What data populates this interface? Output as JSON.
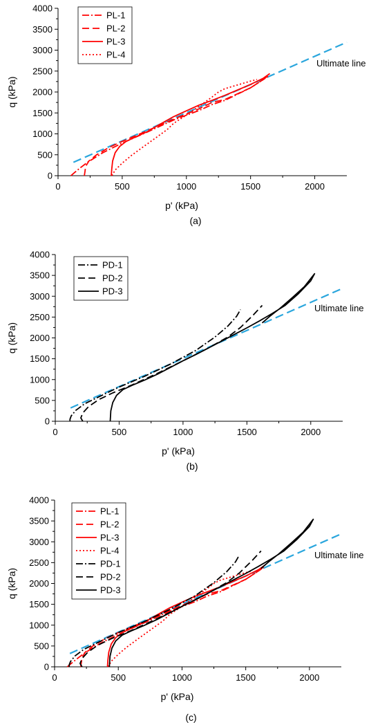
{
  "colors": {
    "red": "#ff0000",
    "black": "#000000",
    "ultimate": "#2aa6dd",
    "axis": "#000000"
  },
  "chart_data": [
    {
      "type": "line",
      "panel_label": "(a)",
      "xlabel": "p' (kPa)",
      "ylabel": "q (kPa)",
      "xlim": [
        0,
        2250
      ],
      "ylim": [
        0,
        4000
      ],
      "xticks": [
        0,
        500,
        1000,
        1500,
        2000
      ],
      "yticks": [
        0,
        500,
        1000,
        1500,
        2000,
        2500,
        3000,
        3500,
        4000
      ],
      "annotation": "Ultimate line",
      "legend_position": "top-left",
      "ultimate_line": {
        "x": [
          120,
          2250
        ],
        "y": [
          320,
          3190
        ]
      },
      "series": [
        {
          "name": "PL-1",
          "color": "red",
          "dash": "10,3,2,3",
          "x": [
            100,
            130,
            170,
            230,
            350,
            500,
            700,
            900,
            1100,
            1200,
            1300,
            1400,
            1500,
            1600,
            1640
          ],
          "y": [
            0,
            80,
            180,
            320,
            550,
            780,
            1050,
            1330,
            1560,
            1700,
            1800,
            1950,
            2100,
            2300,
            2380
          ]
        },
        {
          "name": "PL-2",
          "color": "red",
          "dash": "10,5",
          "x": [
            205,
            210,
            215,
            240,
            300,
            400,
            500,
            700,
            900,
            1100,
            1200,
            1300,
            1400,
            1500,
            1600,
            1650
          ],
          "y": [
            0,
            100,
            220,
            350,
            500,
            680,
            820,
            1080,
            1350,
            1600,
            1750,
            1820,
            1960,
            2100,
            2300,
            2420
          ]
        },
        {
          "name": "PL-3",
          "color": "red",
          "dash": "",
          "x": [
            415,
            418,
            425,
            445,
            480,
            530,
            600,
            700,
            800,
            900,
            1000,
            1100,
            1200,
            1300,
            1400,
            1500,
            1600,
            1650
          ],
          "y": [
            0,
            150,
            350,
            550,
            700,
            820,
            920,
            1060,
            1240,
            1410,
            1550,
            1690,
            1800,
            1920,
            2050,
            2180,
            2330,
            2440
          ]
        },
        {
          "name": "PL-4",
          "color": "red",
          "dash": "2,3",
          "x": [
            420,
            430,
            450,
            500,
            570,
            650,
            750,
            850,
            900,
            1000,
            1100,
            1200,
            1250,
            1300,
            1400,
            1500,
            1550
          ],
          "y": [
            0,
            60,
            150,
            300,
            480,
            660,
            880,
            1100,
            1250,
            1450,
            1660,
            1880,
            2000,
            2080,
            2170,
            2260,
            2300
          ]
        }
      ]
    },
    {
      "type": "line",
      "panel_label": "(b)",
      "xlabel": "p' (kPa)",
      "ylabel": "q (kPa)",
      "xlim": [
        0,
        2250
      ],
      "ylim": [
        0,
        4000
      ],
      "xticks": [
        0,
        500,
        1000,
        1500,
        2000
      ],
      "yticks": [
        0,
        500,
        1000,
        1500,
        2000,
        2500,
        3000,
        3500,
        4000
      ],
      "annotation": "Ultimate line",
      "legend_position": "top-left",
      "ultimate_line": {
        "x": [
          120,
          2250
        ],
        "y": [
          320,
          3190
        ]
      },
      "series": [
        {
          "name": "PD-1",
          "color": "black",
          "dash": "10,3,2,3",
          "x": [
            115,
            115,
            125,
            160,
            230,
            350,
            500,
            700,
            900,
            1100,
            1250,
            1350,
            1420,
            1450
          ],
          "y": [
            0,
            50,
            130,
            260,
            420,
            600,
            820,
            1080,
            1370,
            1700,
            2020,
            2280,
            2520,
            2680
          ]
        },
        {
          "name": "PD-2",
          "color": "black",
          "dash": "10,5",
          "x": [
            215,
            200,
            215,
            260,
            340,
            450,
            600,
            800,
            1000,
            1200,
            1350,
            1450,
            1550,
            1620
          ],
          "y": [
            0,
            80,
            200,
            350,
            520,
            680,
            870,
            1150,
            1450,
            1760,
            2020,
            2250,
            2550,
            2780
          ]
        },
        {
          "name": "PD-3",
          "color": "black",
          "dash": "",
          "x": [
            430,
            435,
            450,
            480,
            530,
            600,
            700,
            800,
            900,
            1000,
            1100,
            1200,
            1300,
            1400,
            1500,
            1600,
            1700,
            1800,
            1900,
            2000,
            2030,
            1950,
            1860,
            1760,
            1680,
            1620
          ],
          "y": [
            0,
            250,
            450,
            620,
            760,
            860,
            990,
            1130,
            1290,
            1450,
            1600,
            1760,
            1920,
            2080,
            2240,
            2410,
            2590,
            2780,
            3050,
            3370,
            3540,
            3230,
            2980,
            2710,
            2520,
            2360
          ]
        }
      ]
    },
    {
      "type": "line",
      "panel_label": "(c)",
      "xlabel": "p' (kPa)",
      "ylabel": "q (kPa)",
      "xlim": [
        0,
        2250
      ],
      "ylim": [
        0,
        4000
      ],
      "xticks": [
        0,
        500,
        1000,
        1500,
        2000
      ],
      "yticks": [
        0,
        500,
        1000,
        1500,
        2000,
        2500,
        3000,
        3500,
        4000
      ],
      "annotation": "Ultimate line",
      "legend_position": "top-left",
      "ultimate_line": {
        "x": [
          120,
          2250
        ],
        "y": [
          320,
          3190
        ]
      },
      "series": [
        {
          "name": "PL-1",
          "color": "red",
          "dash": "10,3,2,3",
          "x": [
            100,
            130,
            170,
            230,
            350,
            500,
            700,
            900,
            1100,
            1200,
            1300,
            1400,
            1500,
            1600,
            1640
          ],
          "y": [
            0,
            80,
            180,
            320,
            550,
            780,
            1050,
            1330,
            1560,
            1700,
            1800,
            1950,
            2100,
            2300,
            2380
          ]
        },
        {
          "name": "PL-2",
          "color": "red",
          "dash": "10,5",
          "x": [
            205,
            210,
            215,
            240,
            300,
            400,
            500,
            700,
            900,
            1100,
            1200,
            1300,
            1400,
            1500,
            1600,
            1650
          ],
          "y": [
            0,
            100,
            220,
            350,
            500,
            680,
            820,
            1080,
            1350,
            1600,
            1750,
            1820,
            1960,
            2100,
            2300,
            2420
          ]
        },
        {
          "name": "PL-3",
          "color": "red",
          "dash": "",
          "x": [
            415,
            418,
            425,
            445,
            480,
            530,
            600,
            700,
            800,
            900,
            1000,
            1100,
            1200,
            1300,
            1400,
            1500,
            1600,
            1650
          ],
          "y": [
            0,
            150,
            350,
            550,
            700,
            820,
            920,
            1060,
            1240,
            1410,
            1550,
            1690,
            1800,
            1920,
            2050,
            2180,
            2330,
            2440
          ]
        },
        {
          "name": "PL-4",
          "color": "red",
          "dash": "2,3",
          "x": [
            420,
            430,
            450,
            500,
            570,
            650,
            750,
            850,
            900,
            1000,
            1100,
            1200,
            1250,
            1300,
            1400,
            1500,
            1550
          ],
          "y": [
            0,
            60,
            150,
            300,
            480,
            660,
            880,
            1100,
            1250,
            1450,
            1660,
            1880,
            2000,
            2080,
            2170,
            2260,
            2300
          ]
        },
        {
          "name": "PD-1",
          "color": "black",
          "dash": "10,3,2,3",
          "x": [
            115,
            115,
            125,
            160,
            230,
            350,
            500,
            700,
            900,
            1100,
            1250,
            1350,
            1420,
            1450
          ],
          "y": [
            0,
            50,
            130,
            260,
            420,
            600,
            820,
            1080,
            1370,
            1700,
            2020,
            2280,
            2520,
            2680
          ]
        },
        {
          "name": "PD-2",
          "color": "black",
          "dash": "10,5",
          "x": [
            215,
            200,
            215,
            260,
            340,
            450,
            600,
            800,
            1000,
            1200,
            1350,
            1450,
            1550,
            1620
          ],
          "y": [
            0,
            80,
            200,
            350,
            520,
            680,
            870,
            1150,
            1450,
            1760,
            2020,
            2250,
            2550,
            2780
          ]
        },
        {
          "name": "PD-3",
          "color": "black",
          "dash": "",
          "x": [
            430,
            435,
            450,
            480,
            530,
            600,
            700,
            800,
            900,
            1000,
            1100,
            1200,
            1300,
            1400,
            1500,
            1600,
            1700,
            1800,
            1900,
            2000,
            2030,
            1950,
            1860,
            1760,
            1680,
            1620
          ],
          "y": [
            0,
            250,
            450,
            620,
            760,
            860,
            990,
            1130,
            1290,
            1450,
            1600,
            1760,
            1920,
            2080,
            2240,
            2410,
            2590,
            2780,
            3050,
            3370,
            3540,
            3230,
            2980,
            2710,
            2520,
            2360
          ]
        }
      ]
    }
  ]
}
